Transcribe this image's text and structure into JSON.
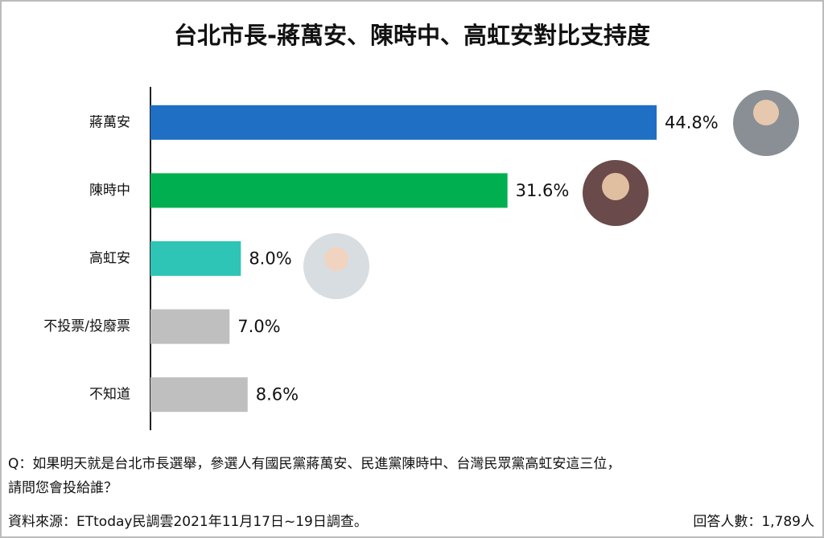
{
  "chart_data": {
    "type": "bar",
    "orientation": "horizontal",
    "title": "台北市長-蔣萬安、陳時中、高虹安對比支持度",
    "categories": [
      "蔣萬安",
      "陳時中",
      "高虹安",
      "不投票/投廢票",
      "不知道"
    ],
    "values": [
      44.8,
      31.6,
      8.0,
      7.0,
      8.6
    ],
    "value_labels": [
      "44.8%",
      "31.6%",
      "8.0%",
      "7.0%",
      "8.6%"
    ],
    "colors": [
      "#1f6fc5",
      "#00b050",
      "#2ec4b6",
      "#bfbfbf",
      "#bfbfbf"
    ],
    "question": "Q：如果明天就是台北市長選舉，參選人有國民黨蔣萬安、民進黨陳時中、台灣民眾黨高虹安這三位，",
    "question_line2": "請問您會投給誰？",
    "source": "資料來源：ETtoday民調雲2021年11月17日~19日調查。",
    "respondents": "回答人數：1,789人"
  }
}
